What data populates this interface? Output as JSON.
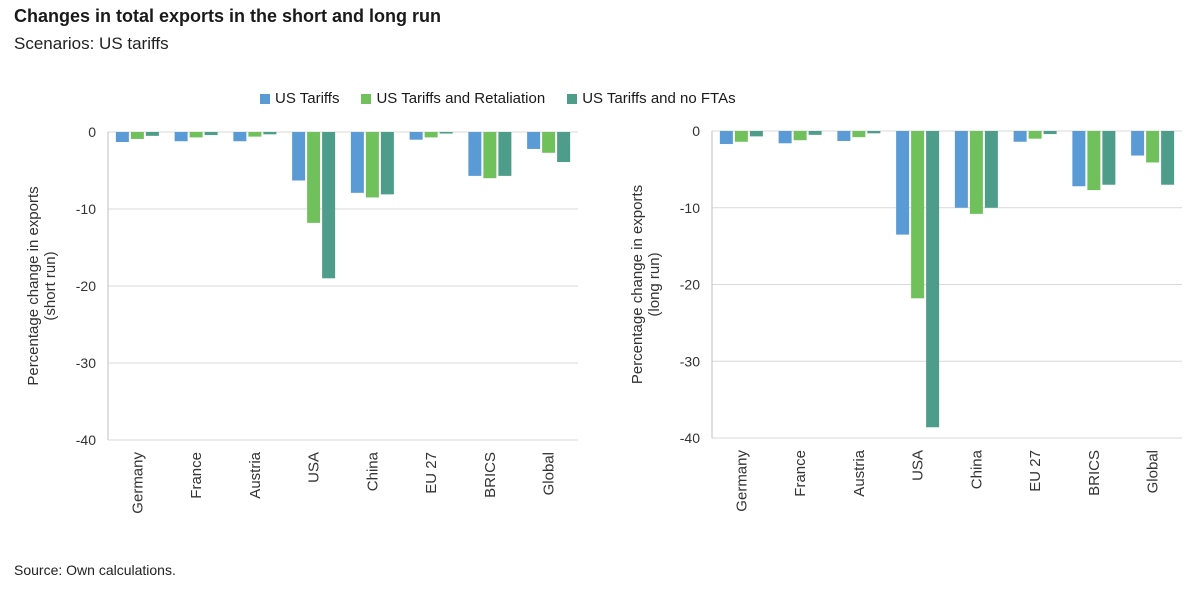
{
  "header": {
    "title": "Changes in total exports in the short and long run",
    "subtitle": "Scenarios: US tariffs"
  },
  "source": "Source: Own calculations.",
  "colors": {
    "us_tariffs": "#5b9bd5",
    "us_tariffs_retaliation": "#70c15c",
    "us_tariffs_no_ftas": "#4e9d8a"
  },
  "chart_data": [
    {
      "type": "bar",
      "ylabel": "Percentage change in exports\n(short run)",
      "ylim": [
        -40,
        0
      ],
      "yticks": [
        0,
        -10,
        -20,
        -30,
        -40
      ],
      "grid": true,
      "legend_position": "top",
      "categories": [
        "Germany",
        "France",
        "Austria",
        "USA",
        "China",
        "EU 27",
        "BRICS",
        "Global"
      ],
      "series": [
        {
          "name": "US Tariffs",
          "values": [
            -1.3,
            -1.2,
            -1.2,
            -6.3,
            -7.9,
            -1.0,
            -5.7,
            -2.2
          ]
        },
        {
          "name": "US Tariffs and Retaliation",
          "values": [
            -0.9,
            -0.7,
            -0.6,
            -11.8,
            -8.5,
            -0.7,
            -6.0,
            -2.7
          ]
        },
        {
          "name": "US Tariffs and no FTAs",
          "values": [
            -0.5,
            -0.4,
            -0.3,
            -19.0,
            -8.1,
            -0.2,
            -5.7,
            -3.9
          ]
        }
      ]
    },
    {
      "type": "bar",
      "ylabel": "Percentage change in exports\n(long run)",
      "ylim": [
        -40,
        0
      ],
      "yticks": [
        0,
        -10,
        -20,
        -30,
        -40
      ],
      "grid": true,
      "legend_position": "top",
      "categories": [
        "Germany",
        "France",
        "Austria",
        "USA",
        "China",
        "EU 27",
        "BRICS",
        "Global"
      ],
      "series": [
        {
          "name": "US Tariffs",
          "values": [
            -1.7,
            -1.6,
            -1.3,
            -13.5,
            -10.0,
            -1.4,
            -7.2,
            -3.2
          ]
        },
        {
          "name": "US Tariffs and Retaliation",
          "values": [
            -1.4,
            -1.2,
            -0.8,
            -21.8,
            -10.8,
            -1.0,
            -7.7,
            -4.1
          ]
        },
        {
          "name": "US Tariffs and no FTAs",
          "values": [
            -0.7,
            -0.5,
            -0.3,
            -38.6,
            -10.0,
            -0.4,
            -7.0,
            -7.0
          ]
        }
      ]
    }
  ]
}
